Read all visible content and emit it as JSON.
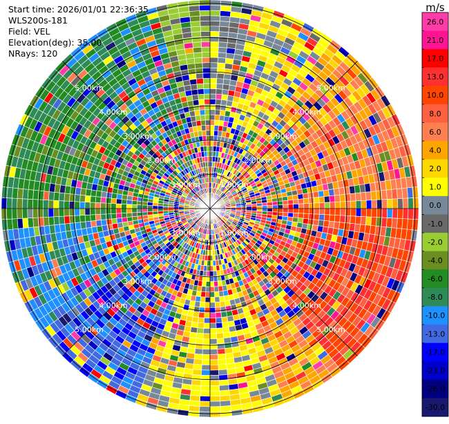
{
  "header": {
    "start_time": "Start time: 2026/01/01 22:36:35",
    "instrument": "WLS200s-181",
    "field": "Field: VEL",
    "elevation": "Elevation(deg): 35.00",
    "nrays": "NRays: 120"
  },
  "chart_data": {
    "type": "heatmap",
    "projection": "polar-ppi",
    "title": "Start time: 2026/01/01 22:36:35",
    "field": "VEL",
    "units": "m/s",
    "instrument": "WLS200s-181",
    "elevation_deg": 35.0,
    "n_rays": 120,
    "range_km": [
      0,
      6.1
    ],
    "range_rings_km": [
      1,
      2,
      3,
      4,
      5,
      6
    ],
    "range_ring_labels": [
      "1.00km",
      "2.00km",
      "3.00km",
      "4.00km",
      "5.00km"
    ],
    "azimuth_lines_deg": [
      0,
      45,
      90,
      135,
      180,
      225,
      270,
      315
    ],
    "n_gates": 40,
    "colorbar": {
      "label": "m/s",
      "tick_labels": [
        "26.0",
        "21.0",
        "17.0",
        "13.0",
        "10.0",
        "8.0",
        "6.0",
        "4.0",
        "2.0",
        "1.0",
        "0.0",
        "-1.0",
        "-2.0",
        "-4.0",
        "-6.0",
        "-8.0",
        "-10.0",
        "-13.0",
        "-17.0",
        "-21.0",
        "-26.0",
        "-30.0"
      ],
      "colors": [
        "#ff3ca8",
        "#ff1493",
        "#ff0000",
        "#ff3030",
        "#ff4500",
        "#ff6040",
        "#ff7f50",
        "#ffa500",
        "#ffd700",
        "#ffff00",
        "#778899",
        "#696969",
        "#9acd32",
        "#6b8e23",
        "#228b22",
        "#2e8b57",
        "#1e90ff",
        "#4169e1",
        "#0000ff",
        "#0000cd",
        "#000080",
        "#191970"
      ]
    },
    "sector_pattern": [
      {
        "az_from": 0,
        "az_to": 13,
        "color_index": 10
      },
      {
        "az_from": 13,
        "az_to": 35,
        "color_index": 9
      },
      {
        "az_from": 35,
        "az_to": 55,
        "color_index": 7
      },
      {
        "az_from": 55,
        "az_to": 90,
        "color_index": 6
      },
      {
        "az_from": 90,
        "az_to": 140,
        "color_index": 4
      },
      {
        "az_from": 140,
        "az_to": 160,
        "color_index": 7
      },
      {
        "az_from": 160,
        "az_to": 200,
        "color_index": 9
      },
      {
        "az_from": 200,
        "az_to": 235,
        "color_index": 17
      },
      {
        "az_from": 235,
        "az_to": 265,
        "color_index": 16
      },
      {
        "az_from": 265,
        "az_to": 310,
        "color_index": 14
      },
      {
        "az_from": 310,
        "az_to": 345,
        "color_index": 15
      },
      {
        "az_from": 345,
        "az_to": 360,
        "color_index": 12
      }
    ]
  }
}
